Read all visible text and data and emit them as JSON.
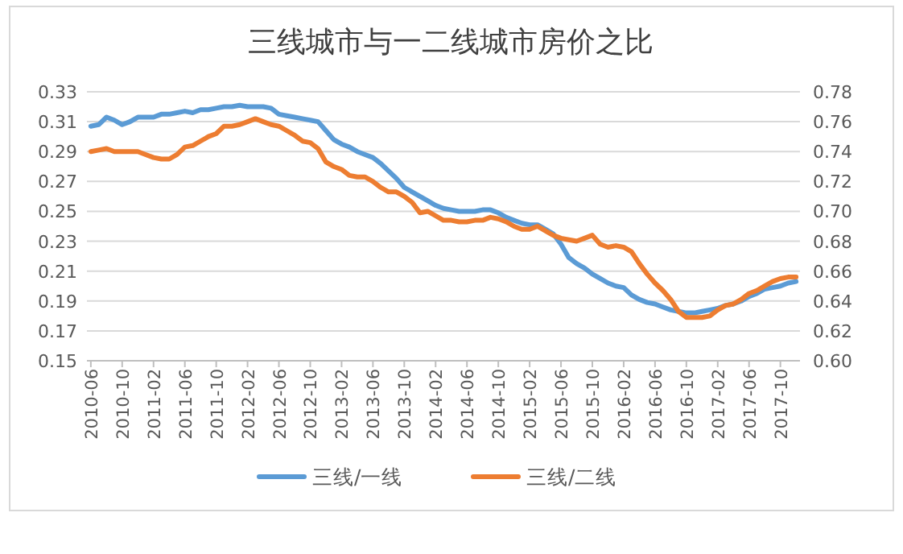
{
  "chart_data": {
    "type": "line",
    "title": "三线城市与一二线城市房价之比",
    "categories": [
      "2010-06",
      null,
      null,
      null,
      "2010-10",
      null,
      null,
      null,
      "2011-02",
      null,
      null,
      null,
      "2011-06",
      null,
      null,
      null,
      "2011-10",
      null,
      null,
      null,
      "2012-02",
      null,
      null,
      null,
      "2012-06",
      null,
      null,
      null,
      "2012-10",
      null,
      null,
      null,
      "2013-02",
      null,
      null,
      null,
      "2013-06",
      null,
      null,
      null,
      "2013-10",
      null,
      null,
      null,
      "2014-02",
      null,
      null,
      null,
      "2014-06",
      null,
      null,
      null,
      "2014-10",
      null,
      null,
      null,
      "2015-02",
      null,
      null,
      null,
      "2015-06",
      null,
      null,
      null,
      "2015-10",
      null,
      null,
      null,
      "2016-02",
      null,
      null,
      null,
      "2016-06",
      null,
      null,
      null,
      "2016-10",
      null,
      null,
      null,
      "2017-02",
      null,
      null,
      null,
      "2017-06",
      null,
      null,
      null,
      "2017-10",
      null,
      null
    ],
    "series": [
      {
        "name": "三线/一线",
        "color": "#5b9bd5",
        "axis": "y",
        "values": [
          0.307,
          0.308,
          0.313,
          0.311,
          0.308,
          0.31,
          0.313,
          0.313,
          0.313,
          0.315,
          0.315,
          0.316,
          0.317,
          0.316,
          0.318,
          0.318,
          0.319,
          0.32,
          0.32,
          0.321,
          0.32,
          0.32,
          0.32,
          0.319,
          0.315,
          0.314,
          0.313,
          0.312,
          0.311,
          0.31,
          0.304,
          0.298,
          0.295,
          0.293,
          0.29,
          0.288,
          0.286,
          0.282,
          0.277,
          0.272,
          0.266,
          0.263,
          0.26,
          0.257,
          0.254,
          0.252,
          0.251,
          0.25,
          0.25,
          0.25,
          0.251,
          0.251,
          0.249,
          0.246,
          0.244,
          0.242,
          0.241,
          0.241,
          0.238,
          0.235,
          0.228,
          0.219,
          0.215,
          0.212,
          0.208,
          0.205,
          0.202,
          0.2,
          0.199,
          0.194,
          0.191,
          0.189,
          0.188,
          0.186,
          0.184,
          0.183,
          0.182,
          0.182,
          0.183,
          0.184,
          0.185,
          0.187,
          0.188,
          0.19,
          0.193,
          0.195,
          0.198,
          0.199,
          0.2,
          0.202,
          0.203
        ]
      },
      {
        "name": "三线/二线",
        "color": "#ed7d31",
        "axis": "y2",
        "values": [
          0.74,
          0.741,
          0.742,
          0.74,
          0.74,
          0.74,
          0.74,
          0.738,
          0.736,
          0.735,
          0.735,
          0.738,
          0.743,
          0.744,
          0.747,
          0.75,
          0.752,
          0.757,
          0.757,
          0.758,
          0.76,
          0.762,
          0.76,
          0.758,
          0.757,
          0.754,
          0.751,
          0.747,
          0.746,
          0.742,
          0.733,
          0.73,
          0.728,
          0.724,
          0.723,
          0.723,
          0.72,
          0.716,
          0.713,
          0.713,
          0.71,
          0.706,
          0.699,
          0.7,
          0.697,
          0.694,
          0.694,
          0.693,
          0.693,
          0.694,
          0.694,
          0.696,
          0.695,
          0.693,
          0.69,
          0.688,
          0.688,
          0.69,
          0.687,
          0.684,
          0.682,
          0.681,
          0.68,
          0.682,
          0.684,
          0.678,
          0.676,
          0.677,
          0.676,
          0.673,
          0.665,
          0.658,
          0.652,
          0.647,
          0.641,
          0.633,
          0.629,
          0.629,
          0.629,
          0.63,
          0.634,
          0.637,
          0.638,
          0.641,
          0.645,
          0.647,
          0.65,
          0.653,
          0.655,
          0.656,
          0.656
        ]
      }
    ],
    "ylim": [
      0.15,
      0.33
    ],
    "yticks": [
      0.15,
      0.17,
      0.19,
      0.21,
      0.23,
      0.25,
      0.27,
      0.29,
      0.31,
      0.33
    ],
    "y2lim": [
      0.6,
      0.78
    ],
    "y2ticks": [
      {
        "value": 0.6,
        "label": "0.60"
      },
      0.62,
      0.64,
      0.66,
      0.68,
      {
        "value": 0.7,
        "label": "0.70"
      },
      0.72,
      0.74,
      0.76,
      0.78
    ],
    "grid": "y",
    "legend": "bottom"
  }
}
